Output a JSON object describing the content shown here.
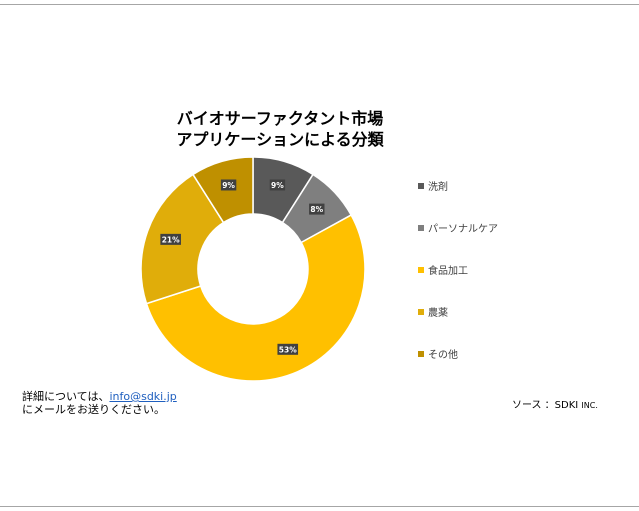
{
  "chart_data": {
    "type": "pie",
    "variant": "donut",
    "title_lines": [
      "バイオサーファクタント市場",
      "アプリケーションによる分類"
    ],
    "categories": [
      "洗剤",
      "パーソナルケア",
      "食品加工",
      "農薬",
      "その他"
    ],
    "values": [
      9,
      8,
      53,
      21,
      9
    ],
    "value_labels": [
      "9%",
      "8%",
      "53%",
      "21%",
      "9%"
    ],
    "colors": [
      "#595959",
      "#7f7f7f",
      "#ffc000",
      "#e0ad0a",
      "#bf9000"
    ],
    "legend_position": "right"
  },
  "footer": {
    "contact_prefix": "詳細については、",
    "contact_email": "info@sdki.jp",
    "contact_suffix": "にメールをお送りください。",
    "source_label": "ソース ：SDKI",
    "source_suffix": "INC."
  }
}
